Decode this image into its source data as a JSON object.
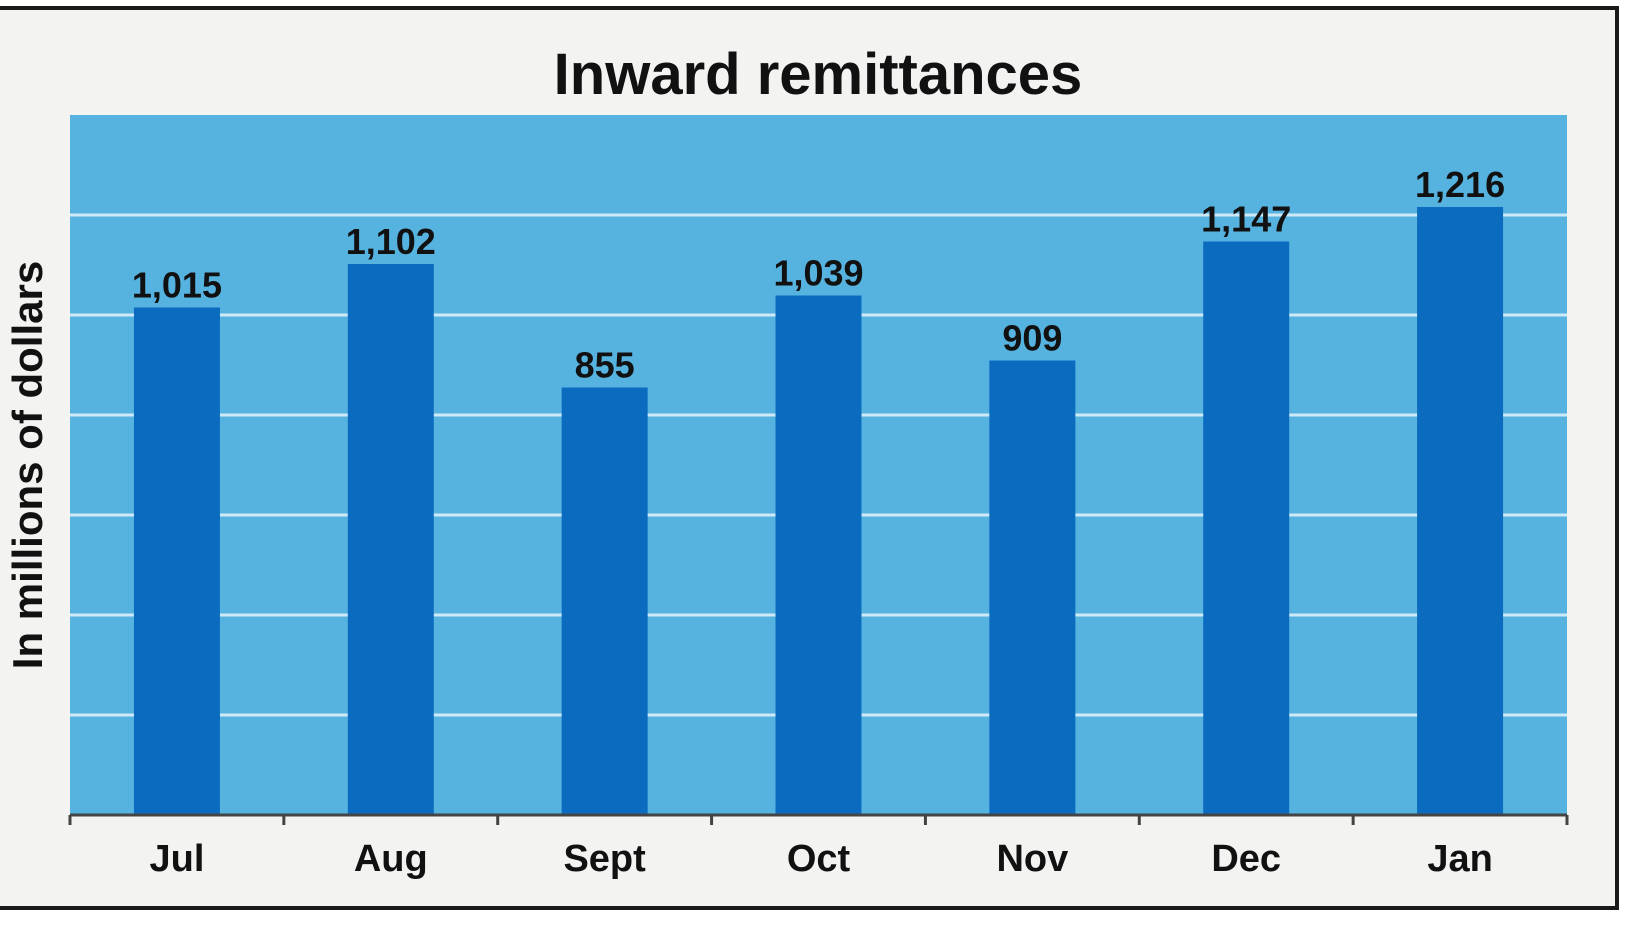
{
  "chart_data": {
    "type": "bar",
    "title": "Inward remittances",
    "ylabel": "In millions of dollars",
    "xlabel": "",
    "categories": [
      "Jul",
      "Aug",
      "Sept",
      "Oct",
      "Nov",
      "Dec",
      "Jan"
    ],
    "values": [
      1015,
      1102,
      855,
      1039,
      909,
      1147,
      1216
    ],
    "data_labels": [
      "1,015",
      "1,102",
      "855",
      "1,039",
      "909",
      "1,147",
      "1,216"
    ],
    "ylim": [
      0,
      1400
    ],
    "grid": true,
    "legend": "none",
    "colors": {
      "plot_background": "#56b3e0",
      "bar": "#0a6bbf",
      "gridline": "#cfeaf7",
      "frame": "#f3f3f1"
    }
  }
}
